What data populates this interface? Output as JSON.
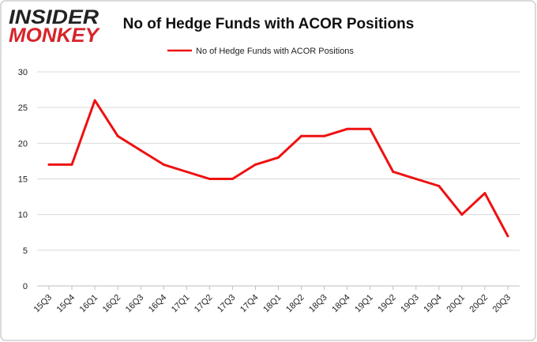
{
  "logo": {
    "line1": "INSIDER",
    "line2": "MONKEY",
    "color_top": "#222222",
    "color_bottom": "#d7242a"
  },
  "chart_data": {
    "type": "line",
    "title": "No of Hedge Funds with ACOR Positions",
    "xlabel": "",
    "ylabel": "",
    "categories": [
      "15Q3",
      "15Q4",
      "16Q1",
      "16Q2",
      "16Q3",
      "16Q4",
      "17Q1",
      "17Q2",
      "17Q3",
      "17Q4",
      "18Q1",
      "18Q2",
      "18Q3",
      "18Q4",
      "19Q1",
      "19Q2",
      "19Q3",
      "19Q4",
      "20Q1",
      "20Q2",
      "20Q3"
    ],
    "series": [
      {
        "name": "No of Hedge Funds with ACOR Positions",
        "color": "#ee1111",
        "values": [
          17,
          17,
          26,
          21,
          19,
          17,
          16,
          15,
          15,
          17,
          18,
          21,
          21,
          22,
          22,
          16,
          15,
          14,
          10,
          13,
          7
        ]
      }
    ],
    "ylim": [
      0,
      30
    ],
    "yticks": [
      0,
      5,
      10,
      15,
      20,
      25,
      30
    ],
    "grid": true,
    "legend_position": "top-center",
    "gridline_color": "#d9d9d9",
    "frame_border_color": "#cfcfcf"
  }
}
